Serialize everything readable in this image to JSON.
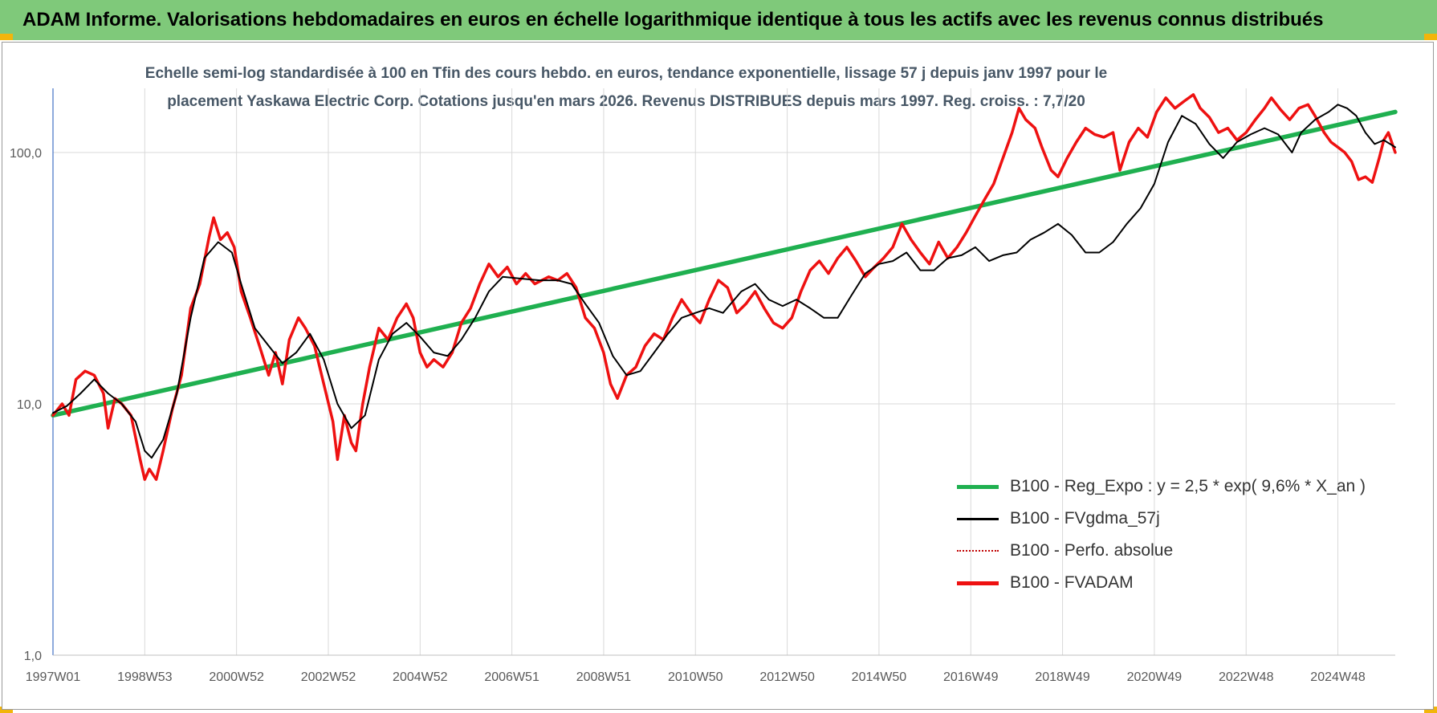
{
  "header": {
    "title": "ADAM Informe. Valorisations hebdomadaires en euros en échelle logarithmique identique à tous les actifs avec les revenus connus distribués"
  },
  "colors": {
    "banner": "#7fc97a",
    "corner": "#f2b50b",
    "trend": "#1fb050",
    "smooth": "#000000",
    "absolute": "#c00000",
    "adam": "#ee1111"
  },
  "chart_data": {
    "type": "line",
    "title": "Echelle semi-log standardisée à 100 en Tfin des cours hebdo. en euros, tendance exponentielle, lissage 57 j depuis janv 1997 pour le placement Yaskawa Electric Corp. Cotations jusqu'en mars 2026. Revenus DISTRIBUES depuis mars 1997. Reg. croiss. : 7,7/20",
    "title_lines": [
      "Echelle semi-log standardisée à 100 en Tfin des cours hebdo. en euros, tendance exponentielle, lissage 57 j depuis janv 1997 pour le",
      "placement Yaskawa Electric Corp. Cotations jusqu'en mars 2026. Revenus DISTRIBUES depuis mars 1997. Reg. croiss. : 7,7/20"
    ],
    "y_scale": "log",
    "ylim": [
      1,
      180
    ],
    "xlim": [
      1997.0,
      2026.25
    ],
    "y_ticks": [
      {
        "value": 1,
        "label": "1,0"
      },
      {
        "value": 10,
        "label": "10,0"
      },
      {
        "value": 100,
        "label": "100,0"
      }
    ],
    "x_ticks": [
      {
        "t": 1997.0,
        "label": "1997W01"
      },
      {
        "t": 1999.0,
        "label": "1998W53"
      },
      {
        "t": 2001.0,
        "label": "2000W52"
      },
      {
        "t": 2003.0,
        "label": "2002W52"
      },
      {
        "t": 2005.0,
        "label": "2004W52"
      },
      {
        "t": 2007.0,
        "label": "2006W51"
      },
      {
        "t": 2009.0,
        "label": "2008W51"
      },
      {
        "t": 2011.0,
        "label": "2010W50"
      },
      {
        "t": 2013.0,
        "label": "2012W50"
      },
      {
        "t": 2015.0,
        "label": "2014W50"
      },
      {
        "t": 2017.0,
        "label": "2016W49"
      },
      {
        "t": 2019.0,
        "label": "2018W49"
      },
      {
        "t": 2021.0,
        "label": "2020W49"
      },
      {
        "t": 2023.0,
        "label": "2022W48"
      },
      {
        "t": 2025.0,
        "label": "2024W48"
      }
    ],
    "grid": true,
    "legend_position": "bottom-right",
    "series": [
      {
        "name": "B100 - Reg_Expo : y = 2,5 * exp( 9,6% *  X_an )",
        "style": "thick-green",
        "points": [
          [
            1997.0,
            9.0
          ],
          [
            2026.25,
            145
          ]
        ]
      },
      {
        "name": "B100 - FVgdma_57j",
        "style": "thin-black",
        "points": [
          [
            1997.0,
            9.2
          ],
          [
            1997.3,
            9.8
          ],
          [
            1997.6,
            11.0
          ],
          [
            1997.9,
            12.5
          ],
          [
            1998.2,
            11.0
          ],
          [
            1998.5,
            10.0
          ],
          [
            1998.8,
            8.5
          ],
          [
            1999.0,
            6.5
          ],
          [
            1999.15,
            6.1
          ],
          [
            1999.4,
            7.2
          ],
          [
            1999.7,
            11.0
          ],
          [
            2000.0,
            22.0
          ],
          [
            2000.3,
            38.0
          ],
          [
            2000.6,
            44.0
          ],
          [
            2000.9,
            40.0
          ],
          [
            2001.1,
            30.0
          ],
          [
            2001.4,
            20.0
          ],
          [
            2001.7,
            17.0
          ],
          [
            2002.0,
            14.5
          ],
          [
            2002.3,
            16.0
          ],
          [
            2002.6,
            19.0
          ],
          [
            2002.9,
            15.0
          ],
          [
            2003.2,
            10.0
          ],
          [
            2003.5,
            8.0
          ],
          [
            2003.8,
            9.0
          ],
          [
            2004.1,
            15.0
          ],
          [
            2004.4,
            19.0
          ],
          [
            2004.7,
            21.0
          ],
          [
            2005.0,
            18.5
          ],
          [
            2005.3,
            16.0
          ],
          [
            2005.6,
            15.5
          ],
          [
            2005.9,
            18.0
          ],
          [
            2006.2,
            22.0
          ],
          [
            2006.5,
            28.0
          ],
          [
            2006.8,
            32.0
          ],
          [
            2007.2,
            31.5
          ],
          [
            2007.6,
            31.0
          ],
          [
            2008.0,
            31.0
          ],
          [
            2008.3,
            30.0
          ],
          [
            2008.6,
            25.0
          ],
          [
            2008.9,
            21.0
          ],
          [
            2009.2,
            15.5
          ],
          [
            2009.5,
            13.0
          ],
          [
            2009.8,
            13.5
          ],
          [
            2010.1,
            16.0
          ],
          [
            2010.4,
            19.0
          ],
          [
            2010.7,
            22.0
          ],
          [
            2011.0,
            23.0
          ],
          [
            2011.3,
            24.0
          ],
          [
            2011.6,
            23.0
          ],
          [
            2012.0,
            28.0
          ],
          [
            2012.3,
            30.0
          ],
          [
            2012.6,
            26.0
          ],
          [
            2012.9,
            24.5
          ],
          [
            2013.2,
            26.0
          ],
          [
            2013.5,
            24.0
          ],
          [
            2013.8,
            22.0
          ],
          [
            2014.1,
            22.0
          ],
          [
            2014.4,
            27.0
          ],
          [
            2014.7,
            33.0
          ],
          [
            2015.0,
            36.0
          ],
          [
            2015.3,
            37.0
          ],
          [
            2015.6,
            40.0
          ],
          [
            2015.9,
            34.0
          ],
          [
            2016.2,
            34.0
          ],
          [
            2016.5,
            38.0
          ],
          [
            2016.8,
            39.0
          ],
          [
            2017.1,
            42.0
          ],
          [
            2017.4,
            37.0
          ],
          [
            2017.7,
            39.0
          ],
          [
            2018.0,
            40.0
          ],
          [
            2018.3,
            45.0
          ],
          [
            2018.6,
            48.0
          ],
          [
            2018.9,
            52.0
          ],
          [
            2019.2,
            47.0
          ],
          [
            2019.5,
            40.0
          ],
          [
            2019.8,
            40.0
          ],
          [
            2020.1,
            44.0
          ],
          [
            2020.4,
            52.0
          ],
          [
            2020.7,
            60.0
          ],
          [
            2021.0,
            75.0
          ],
          [
            2021.3,
            110.0
          ],
          [
            2021.6,
            140.0
          ],
          [
            2021.9,
            130.0
          ],
          [
            2022.2,
            108.0
          ],
          [
            2022.5,
            95.0
          ],
          [
            2022.8,
            110.0
          ],
          [
            2023.1,
            118.0
          ],
          [
            2023.4,
            125.0
          ],
          [
            2023.7,
            118.0
          ],
          [
            2024.0,
            100.0
          ],
          [
            2024.2,
            120.0
          ],
          [
            2024.5,
            135.0
          ],
          [
            2024.8,
            145.0
          ],
          [
            2025.0,
            155.0
          ],
          [
            2025.2,
            150.0
          ],
          [
            2025.4,
            140.0
          ],
          [
            2025.6,
            120.0
          ],
          [
            2025.8,
            108.0
          ],
          [
            2026.0,
            112.0
          ],
          [
            2026.25,
            105.0
          ]
        ]
      },
      {
        "name": "B100 - Perfo. absolue",
        "style": "dotted-darkred",
        "points": []
      },
      {
        "name": "B100 - FVADAM",
        "style": "thick-red",
        "points": [
          [
            1997.0,
            9.0
          ],
          [
            1997.2,
            10.0
          ],
          [
            1997.35,
            9.0
          ],
          [
            1997.5,
            12.5
          ],
          [
            1997.7,
            13.5
          ],
          [
            1997.9,
            13.0
          ],
          [
            1998.1,
            11.0
          ],
          [
            1998.2,
            8.0
          ],
          [
            1998.35,
            10.5
          ],
          [
            1998.5,
            10.0
          ],
          [
            1998.7,
            9.0
          ],
          [
            1998.9,
            6.0
          ],
          [
            1999.0,
            5.0
          ],
          [
            1999.1,
            5.5
          ],
          [
            1999.25,
            5.0
          ],
          [
            1999.4,
            6.5
          ],
          [
            1999.6,
            9.5
          ],
          [
            1999.8,
            13.0
          ],
          [
            2000.0,
            24.0
          ],
          [
            2000.2,
            30.0
          ],
          [
            2000.4,
            46.0
          ],
          [
            2000.5,
            55.0
          ],
          [
            2000.65,
            45.0
          ],
          [
            2000.8,
            48.0
          ],
          [
            2000.95,
            42.0
          ],
          [
            2001.1,
            28.0
          ],
          [
            2001.3,
            22.0
          ],
          [
            2001.5,
            17.0
          ],
          [
            2001.7,
            13.0
          ],
          [
            2001.85,
            16.0
          ],
          [
            2002.0,
            12.0
          ],
          [
            2002.15,
            18.0
          ],
          [
            2002.35,
            22.0
          ],
          [
            2002.5,
            20.0
          ],
          [
            2002.7,
            17.0
          ],
          [
            2002.9,
            12.0
          ],
          [
            2003.1,
            8.5
          ],
          [
            2003.2,
            6.0
          ],
          [
            2003.35,
            9.0
          ],
          [
            2003.5,
            7.0
          ],
          [
            2003.6,
            6.5
          ],
          [
            2003.75,
            10.0
          ],
          [
            2003.9,
            14.0
          ],
          [
            2004.1,
            20.0
          ],
          [
            2004.3,
            18.0
          ],
          [
            2004.5,
            22.0
          ],
          [
            2004.7,
            25.0
          ],
          [
            2004.85,
            22.0
          ],
          [
            2005.0,
            16.0
          ],
          [
            2005.15,
            14.0
          ],
          [
            2005.3,
            15.0
          ],
          [
            2005.5,
            14.0
          ],
          [
            2005.7,
            16.0
          ],
          [
            2005.9,
            21.0
          ],
          [
            2006.1,
            24.0
          ],
          [
            2006.3,
            30.0
          ],
          [
            2006.5,
            36.0
          ],
          [
            2006.7,
            32.0
          ],
          [
            2006.9,
            35.0
          ],
          [
            2007.1,
            30.0
          ],
          [
            2007.3,
            33.0
          ],
          [
            2007.5,
            30.0
          ],
          [
            2007.8,
            32.0
          ],
          [
            2008.0,
            31.0
          ],
          [
            2008.2,
            33.0
          ],
          [
            2008.4,
            29.0
          ],
          [
            2008.6,
            22.0
          ],
          [
            2008.8,
            20.0
          ],
          [
            2009.0,
            16.0
          ],
          [
            2009.15,
            12.0
          ],
          [
            2009.3,
            10.5
          ],
          [
            2009.5,
            13.0
          ],
          [
            2009.7,
            14.0
          ],
          [
            2009.9,
            17.0
          ],
          [
            2010.1,
            19.0
          ],
          [
            2010.3,
            18.0
          ],
          [
            2010.5,
            22.0
          ],
          [
            2010.7,
            26.0
          ],
          [
            2010.9,
            23.0
          ],
          [
            2011.1,
            21.0
          ],
          [
            2011.3,
            26.0
          ],
          [
            2011.5,
            31.0
          ],
          [
            2011.7,
            29.0
          ],
          [
            2011.9,
            23.0
          ],
          [
            2012.1,
            25.0
          ],
          [
            2012.3,
            28.0
          ],
          [
            2012.5,
            24.0
          ],
          [
            2012.7,
            21.0
          ],
          [
            2012.9,
            20.0
          ],
          [
            2013.1,
            22.0
          ],
          [
            2013.3,
            28.0
          ],
          [
            2013.5,
            34.0
          ],
          [
            2013.7,
            37.0
          ],
          [
            2013.9,
            33.0
          ],
          [
            2014.1,
            38.0
          ],
          [
            2014.3,
            42.0
          ],
          [
            2014.5,
            37.0
          ],
          [
            2014.7,
            32.0
          ],
          [
            2014.9,
            35.0
          ],
          [
            2015.1,
            38.0
          ],
          [
            2015.3,
            42.0
          ],
          [
            2015.5,
            52.0
          ],
          [
            2015.7,
            45.0
          ],
          [
            2015.9,
            40.0
          ],
          [
            2016.1,
            36.0
          ],
          [
            2016.3,
            44.0
          ],
          [
            2016.5,
            38.0
          ],
          [
            2016.7,
            42.0
          ],
          [
            2016.9,
            48.0
          ],
          [
            2017.1,
            56.0
          ],
          [
            2017.3,
            65.0
          ],
          [
            2017.5,
            75.0
          ],
          [
            2017.7,
            95.0
          ],
          [
            2017.9,
            120.0
          ],
          [
            2018.05,
            150.0
          ],
          [
            2018.2,
            135.0
          ],
          [
            2018.4,
            125.0
          ],
          [
            2018.55,
            105.0
          ],
          [
            2018.75,
            85.0
          ],
          [
            2018.9,
            80.0
          ],
          [
            2019.1,
            95.0
          ],
          [
            2019.3,
            110.0
          ],
          [
            2019.5,
            125.0
          ],
          [
            2019.7,
            118.0
          ],
          [
            2019.9,
            115.0
          ],
          [
            2020.1,
            120.0
          ],
          [
            2020.25,
            85.0
          ],
          [
            2020.45,
            110.0
          ],
          [
            2020.65,
            125.0
          ],
          [
            2020.85,
            115.0
          ],
          [
            2021.05,
            145.0
          ],
          [
            2021.25,
            165.0
          ],
          [
            2021.45,
            150.0
          ],
          [
            2021.65,
            160.0
          ],
          [
            2021.85,
            170.0
          ],
          [
            2022.0,
            150.0
          ],
          [
            2022.2,
            138.0
          ],
          [
            2022.4,
            120.0
          ],
          [
            2022.6,
            125.0
          ],
          [
            2022.8,
            112.0
          ],
          [
            2023.0,
            120.0
          ],
          [
            2023.2,
            135.0
          ],
          [
            2023.4,
            150.0
          ],
          [
            2023.55,
            165.0
          ],
          [
            2023.75,
            148.0
          ],
          [
            2023.95,
            135.0
          ],
          [
            2024.15,
            150.0
          ],
          [
            2024.35,
            155.0
          ],
          [
            2024.5,
            140.0
          ],
          [
            2024.7,
            120.0
          ],
          [
            2024.85,
            110.0
          ],
          [
            2025.0,
            105.0
          ],
          [
            2025.15,
            100.0
          ],
          [
            2025.3,
            92.0
          ],
          [
            2025.45,
            78.0
          ],
          [
            2025.6,
            80.0
          ],
          [
            2025.75,
            76.0
          ],
          [
            2025.9,
            95.0
          ],
          [
            2026.0,
            112.0
          ],
          [
            2026.1,
            120.0
          ],
          [
            2026.25,
            100.0
          ]
        ]
      }
    ]
  }
}
